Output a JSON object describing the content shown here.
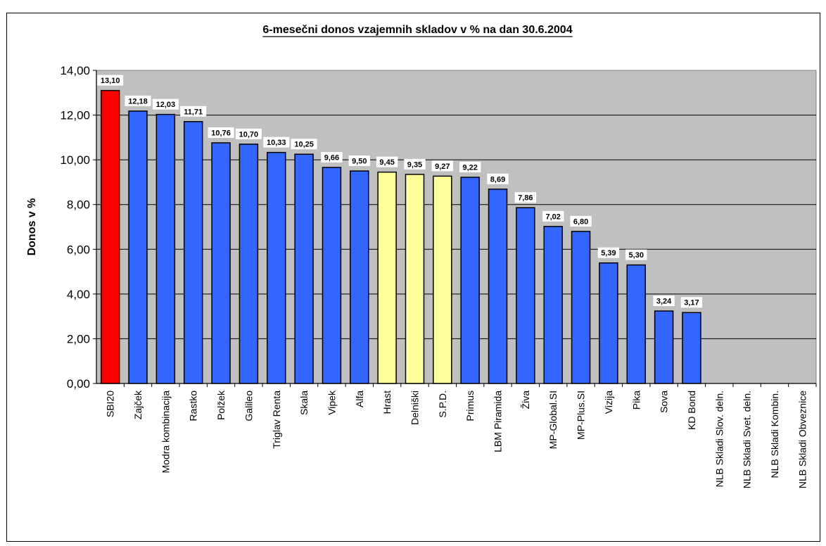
{
  "chart_data": {
    "type": "bar",
    "title": "6-mesečni donos vzajemnih skladov v % na dan 30.6.2004",
    "xlabel": "",
    "ylabel": "Donos v %",
    "ylim": [
      0,
      14
    ],
    "yticks": [
      "0,00",
      "2,00",
      "4,00",
      "6,00",
      "8,00",
      "10,00",
      "12,00",
      "14,00"
    ],
    "grid": true,
    "legend": "none",
    "categories": [
      "SBI20",
      "Zajček",
      "Modra kombinacija",
      "Rastko",
      "Polžek",
      "Galileo",
      "Triglav Renta",
      "Skala",
      "Vipek",
      "Alfa",
      "Hrast",
      "Delniški",
      "S.P.D.",
      "Primus",
      "LBM Piramida",
      "Živa",
      "MP-Global.SI",
      "MP-Plus.SI",
      "Vizija",
      "Pika",
      "Sova",
      "KD Bond",
      "NLB Skladi Slov. deln.",
      "NLB Skladi Svet. deln.",
      "NLB Skladi Kombin.",
      "NLB Skladi Obveznice"
    ],
    "values": [
      13.1,
      12.18,
      12.03,
      11.71,
      10.76,
      10.7,
      10.33,
      10.25,
      9.66,
      9.5,
      9.45,
      9.35,
      9.27,
      9.22,
      8.69,
      7.86,
      7.02,
      6.8,
      5.39,
      5.3,
      3.24,
      3.17,
      null,
      null,
      null,
      null
    ],
    "data_labels": [
      "13,10",
      "12,18",
      "12,03",
      "11,71",
      "10,76",
      "10,70",
      "10,33",
      "10,25",
      "9,66",
      "9,50",
      "9,45",
      "9,35",
      "9,27",
      "9,22",
      "8,69",
      "7,86",
      "7,02",
      "6,80",
      "5,39",
      "5,30",
      "3,24",
      "3,17",
      "",
      "",
      "",
      ""
    ],
    "bar_colors": [
      "#ff0000",
      "#3366ff",
      "#3366ff",
      "#3366ff",
      "#3366ff",
      "#3366ff",
      "#3366ff",
      "#3366ff",
      "#3366ff",
      "#3366ff",
      "#ffff99",
      "#ffff99",
      "#ffff99",
      "#3366ff",
      "#3366ff",
      "#3366ff",
      "#3366ff",
      "#3366ff",
      "#3366ff",
      "#3366ff",
      "#3366ff",
      "#3366ff",
      "#3366ff",
      "#3366ff",
      "#3366ff",
      "#3366ff"
    ],
    "plot_background": "#c0c0c0"
  }
}
